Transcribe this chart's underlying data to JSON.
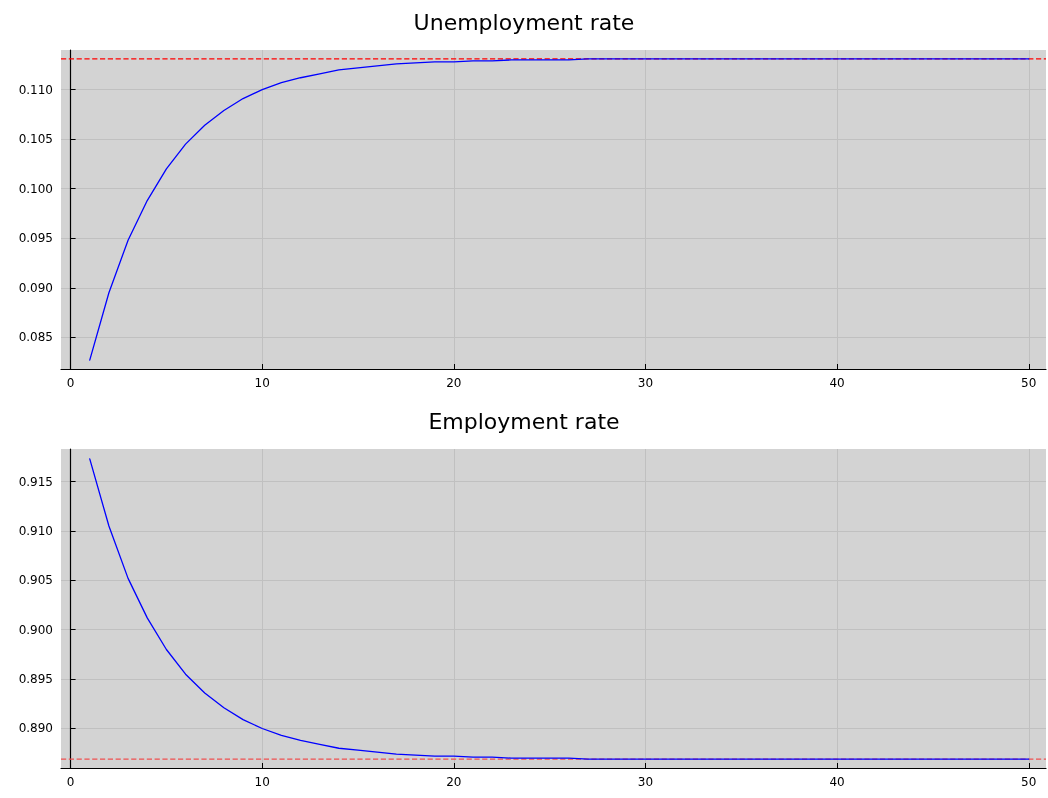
{
  "chart_data": [
    {
      "type": "line",
      "title": "Unemployment rate",
      "x": [
        1,
        2,
        3,
        4,
        5,
        6,
        7,
        8,
        9,
        10,
        11,
        12,
        13,
        14,
        15,
        16,
        17,
        18,
        19,
        20,
        21,
        22,
        23,
        24,
        25,
        26,
        27,
        28,
        29,
        30,
        31,
        32,
        33,
        34,
        35,
        36,
        37,
        38,
        39,
        40,
        41,
        42,
        43,
        44,
        45,
        46,
        47,
        48,
        49,
        50
      ],
      "series": [
        {
          "color": "#0000ff",
          "values": [
            0.0827,
            0.0895,
            0.0948,
            0.0988,
            0.102,
            0.1045,
            0.1064,
            0.1079,
            0.1091,
            0.11,
            0.1107,
            0.1112,
            0.1116,
            0.112,
            0.1122,
            0.1124,
            0.1126,
            0.1127,
            0.1128,
            0.1128,
            0.1129,
            0.1129,
            0.113,
            0.113,
            0.113,
            0.113,
            0.1131,
            0.1131,
            0.1131,
            0.1131,
            0.1131,
            0.1131,
            0.1131,
            0.1131,
            0.1131,
            0.1131,
            0.1131,
            0.1131,
            0.1131,
            0.1131,
            0.1131,
            0.1131,
            0.1131,
            0.1131,
            0.1131,
            0.1131,
            0.1131,
            0.1131,
            0.1131,
            0.1131
          ]
        }
      ],
      "ref_lines": [
        {
          "axis": "y",
          "value": 0.1131,
          "color": "#ff0000",
          "line_style": "dashed"
        }
      ],
      "xlim": [
        -0.5,
        50.9
      ],
      "xticks": [
        0,
        10,
        20,
        30,
        40,
        50
      ],
      "ylim": [
        0.0818,
        0.114
      ],
      "yticks": [
        {
          "value": 0.085,
          "label": "0.085"
        },
        {
          "value": 0.09,
          "label": "0.090"
        },
        {
          "value": 0.095,
          "label": "0.095"
        },
        {
          "value": 0.1,
          "label": "0.100"
        },
        {
          "value": 0.105,
          "label": "0.105"
        },
        {
          "value": 0.11,
          "label": "0.110"
        }
      ],
      "grid": true,
      "line_style": "solid",
      "marker": "none"
    },
    {
      "type": "line",
      "title": "Employment rate",
      "x": [
        1,
        2,
        3,
        4,
        5,
        6,
        7,
        8,
        9,
        10,
        11,
        12,
        13,
        14,
        15,
        16,
        17,
        18,
        19,
        20,
        21,
        22,
        23,
        24,
        25,
        26,
        27,
        28,
        29,
        30,
        31,
        32,
        33,
        34,
        35,
        36,
        37,
        38,
        39,
        40,
        41,
        42,
        43,
        44,
        45,
        46,
        47,
        48,
        49,
        50
      ],
      "series": [
        {
          "color": "#0000ff",
          "values": [
            0.9173,
            0.9105,
            0.9052,
            0.9012,
            0.898,
            0.8955,
            0.8936,
            0.8921,
            0.8909,
            0.89,
            0.8893,
            0.8888,
            0.8884,
            0.888,
            0.8878,
            0.8876,
            0.8874,
            0.8873,
            0.8872,
            0.8872,
            0.8871,
            0.8871,
            0.887,
            0.887,
            0.887,
            0.887,
            0.8869,
            0.8869,
            0.8869,
            0.8869,
            0.8869,
            0.8869,
            0.8869,
            0.8869,
            0.8869,
            0.8869,
            0.8869,
            0.8869,
            0.8869,
            0.8869,
            0.8869,
            0.8869,
            0.8869,
            0.8869,
            0.8869,
            0.8869,
            0.8869,
            0.8869,
            0.8869,
            0.8869
          ]
        }
      ],
      "ref_lines": [
        {
          "axis": "y",
          "value": 0.8869,
          "color": "#f05050",
          "line_style": "dashed"
        }
      ],
      "xlim": [
        -0.5,
        50.9
      ],
      "xticks": [
        0,
        10,
        20,
        30,
        40,
        50
      ],
      "ylim": [
        0.886,
        0.9183
      ],
      "yticks": [
        {
          "value": 0.89,
          "label": "0.890"
        },
        {
          "value": 0.895,
          "label": "0.895"
        },
        {
          "value": 0.9,
          "label": "0.900"
        },
        {
          "value": 0.905,
          "label": "0.905"
        },
        {
          "value": 0.91,
          "label": "0.910"
        },
        {
          "value": 0.915,
          "label": "0.915"
        }
      ],
      "grid": true,
      "line_style": "solid",
      "marker": "none"
    }
  ]
}
